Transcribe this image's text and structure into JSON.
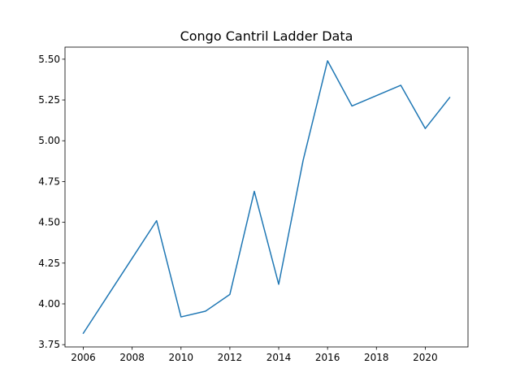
{
  "chart_data": {
    "type": "line",
    "title": "Congo Cantril Ladder Data",
    "xlabel": "",
    "ylabel": "",
    "x": [
      2006,
      2007,
      2008,
      2009,
      2010,
      2011,
      2012,
      2013,
      2014,
      2015,
      2016,
      2017,
      2018,
      2019,
      2020,
      2021
    ],
    "series": [
      {
        "values": [
          3.82,
          4.05,
          4.28,
          4.51,
          3.92,
          3.955,
          4.058,
          4.69,
          4.12,
          4.88,
          5.49,
          5.213,
          5.277,
          5.34,
          5.075,
          5.265
        ]
      }
    ],
    "xlim": [
      2005.25,
      2021.75
    ],
    "ylim": [
      3.736,
      5.574
    ],
    "xticks": [
      2006,
      2008,
      2010,
      2012,
      2014,
      2016,
      2018,
      2020
    ],
    "yticks": [
      "3.75",
      "4.00",
      "4.25",
      "4.50",
      "4.75",
      "5.00",
      "5.25",
      "5.50"
    ],
    "grid": false,
    "legend": "none",
    "line_color": "#1f77b4"
  }
}
